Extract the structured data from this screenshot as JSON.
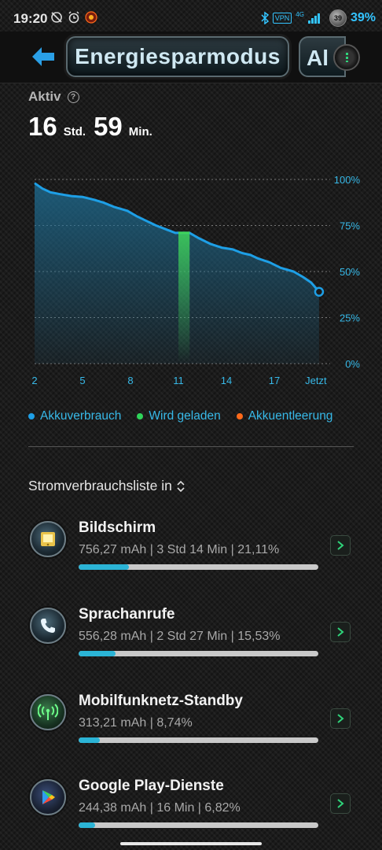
{
  "status": {
    "time": "19:20",
    "vpn": "VPN",
    "network": "4G",
    "battery_badge": "39",
    "battery_pct": "39%"
  },
  "appbar": {
    "title": "Energiesparmodus",
    "next_tab_partial": "Al"
  },
  "active": {
    "label": "Aktiv",
    "help": "?",
    "hours": "16",
    "hours_unit": "Std.",
    "minutes": "59",
    "minutes_unit": "Min."
  },
  "chart_data": {
    "type": "area",
    "x_ticks": [
      "2",
      "5",
      "8",
      "11",
      "14",
      "17",
      "Jetzt"
    ],
    "y_ticks": [
      "100%",
      "75%",
      "50%",
      "25%",
      "0%"
    ],
    "ylim": [
      0,
      100
    ],
    "xlim": [
      2,
      20
    ],
    "series": [
      {
        "name": "Akkuverbrauch",
        "x": [
          2,
          2.5,
          3,
          3.6,
          4.3,
          5,
          5.7,
          6.3,
          7,
          7.8,
          8.4,
          9,
          9.6,
          10.2,
          10.8,
          11.7,
          12.3,
          13,
          13.7,
          14.4,
          15,
          15.5,
          16,
          16.7,
          17.4,
          18.2,
          18.8,
          19.3,
          19.8
        ],
        "y": [
          98,
          95,
          93,
          92,
          91,
          90.5,
          89,
          87.5,
          85,
          83,
          80,
          77.5,
          75,
          73,
          71,
          71,
          68,
          65,
          63,
          62,
          60,
          59,
          57,
          55,
          52,
          50,
          47,
          44,
          39
        ]
      }
    ],
    "charging_band": {
      "x_start": 11.0,
      "x_end": 11.7,
      "y": 71
    },
    "legend": [
      {
        "name": "Akkuverbrauch",
        "color": "#1e9fe6"
      },
      {
        "name": "Wird geladen",
        "color": "#2fd45a"
      },
      {
        "name": "Akkuentleerung",
        "color": "#ff6a1a"
      }
    ]
  },
  "list": {
    "header": "Stromverbrauchsliste in",
    "items": [
      {
        "name": "Bildschirm",
        "stats": "756,27 mAh | 3 Std 14 Min  | 21,11%",
        "fraction": 0.2111,
        "icon": "screen-icon"
      },
      {
        "name": "Sprachanrufe",
        "stats": "556,28 mAh | 2 Std 27 Min  | 15,53%",
        "fraction": 0.1553,
        "icon": "phone-icon"
      },
      {
        "name": "Mobilfunknetz-Standby",
        "stats": "313,21 mAh | 8,74%",
        "fraction": 0.0874,
        "icon": "antenna-icon"
      },
      {
        "name": "Google Play-Dienste",
        "stats": "244,38 mAh | 16 Min  | 6,82%",
        "fraction": 0.0682,
        "icon": "play-icon"
      }
    ]
  }
}
